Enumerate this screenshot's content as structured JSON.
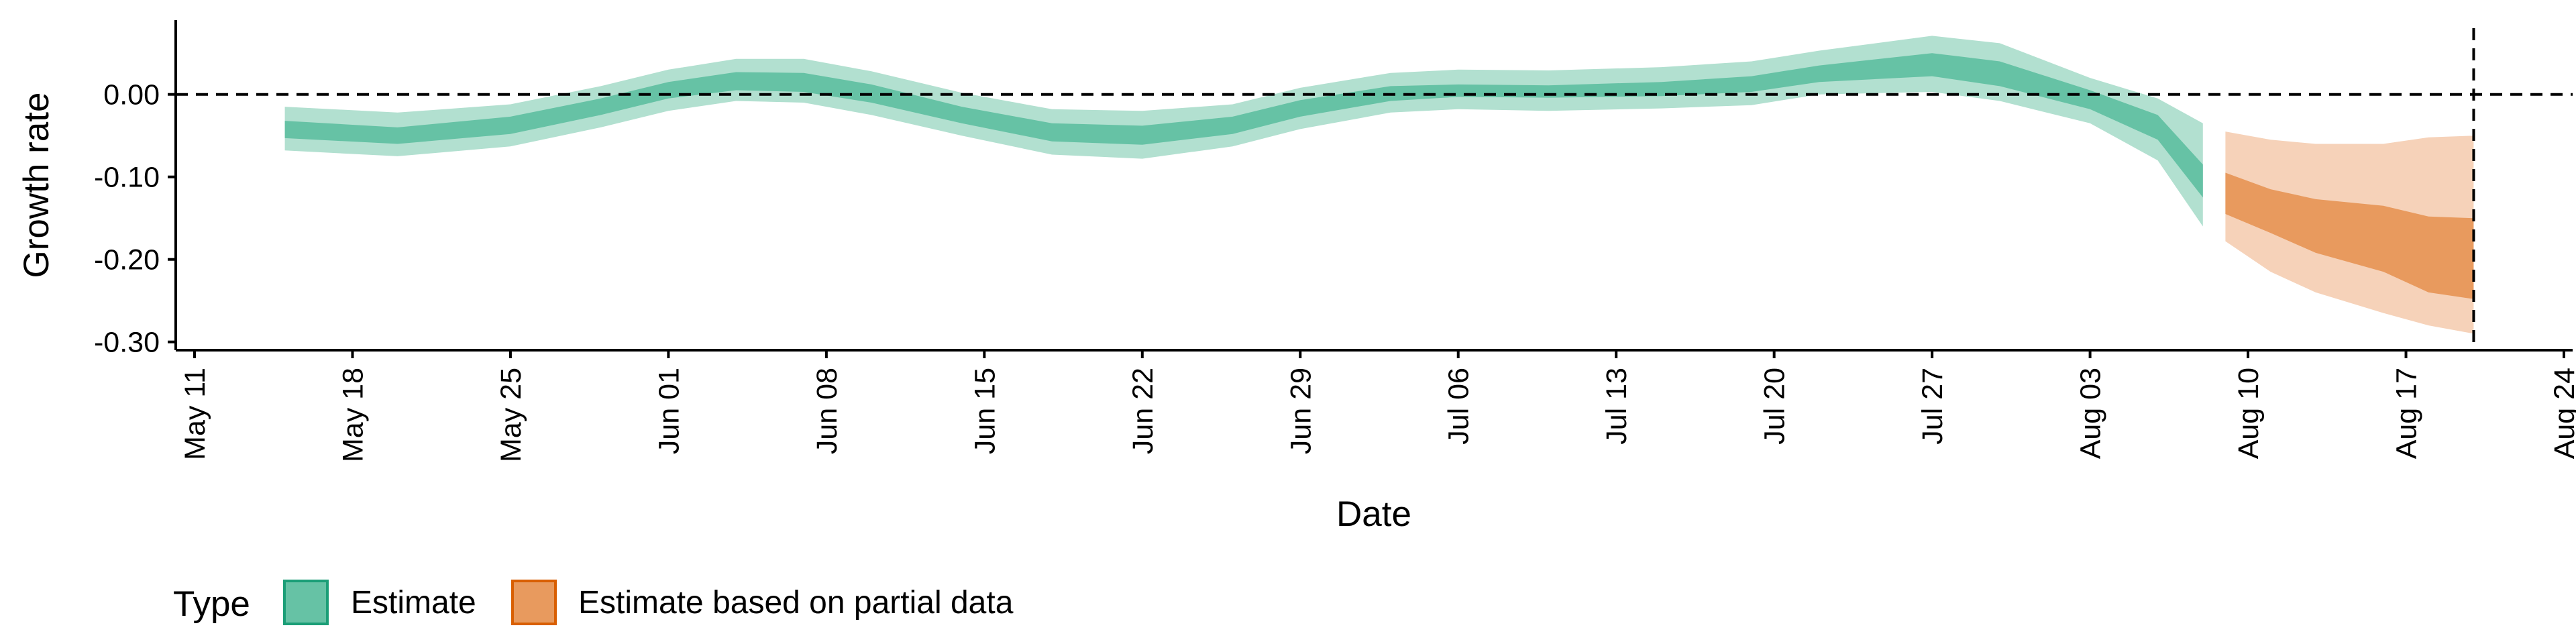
{
  "chart_data": {
    "type": "area",
    "title": "",
    "xlabel": "Date",
    "ylabel": "Growth rate",
    "x_axis": {
      "type": "date",
      "range": [
        "2020-05-11",
        "2020-08-24"
      ],
      "ticks": [
        "2020-05-11",
        "2020-05-18",
        "2020-05-25",
        "2020-06-01",
        "2020-06-08",
        "2020-06-15",
        "2020-06-22",
        "2020-06-29",
        "2020-07-06",
        "2020-07-13",
        "2020-07-20",
        "2020-07-27",
        "2020-08-03",
        "2020-08-10",
        "2020-08-17",
        "2020-08-24"
      ],
      "tick_labels": [
        "May 11",
        "May 18",
        "May 25",
        "Jun 01",
        "Jun 08",
        "Jun 15",
        "Jun 22",
        "Jun 29",
        "Jul 06",
        "Jul 13",
        "Jul 20",
        "Jul 27",
        "Aug 03",
        "Aug 10",
        "Aug 17",
        "Aug 24"
      ]
    },
    "y_axis": {
      "range": [
        -0.31,
        0.09
      ],
      "ticks": [
        0.0,
        -0.1,
        -0.2,
        -0.3
      ],
      "tick_labels": [
        "0.00",
        "-0.10",
        "-0.20",
        "-0.30"
      ]
    },
    "grid": false,
    "reference_lines": [
      {
        "orientation": "horizontal",
        "value": 0,
        "style": "dashed"
      },
      {
        "orientation": "vertical",
        "value": "2020-08-20",
        "style": "dashed"
      }
    ],
    "legend": {
      "title": "Type",
      "position": "bottom",
      "entries": [
        {
          "label": "Estimate",
          "fill": "#66c2a5",
          "border": "#1b9e77"
        },
        {
          "label": "Estimate based on partial data",
          "fill": "#e89a5e",
          "border": "#d95f02"
        }
      ]
    },
    "series": [
      {
        "name": "Estimate",
        "color_inner": "#66c2a5",
        "color_outer": "#b2e0d0",
        "points": [
          {
            "x": "2020-05-15",
            "lo90": -0.068,
            "lo50": -0.053,
            "hi50": -0.032,
            "hi90": -0.015
          },
          {
            "x": "2020-05-20",
            "lo90": -0.075,
            "lo50": -0.06,
            "hi50": -0.04,
            "hi90": -0.022
          },
          {
            "x": "2020-05-25",
            "lo90": -0.063,
            "lo50": -0.048,
            "hi50": -0.027,
            "hi90": -0.012
          },
          {
            "x": "2020-05-29",
            "lo90": -0.04,
            "lo50": -0.025,
            "hi50": -0.005,
            "hi90": 0.01
          },
          {
            "x": "2020-06-01",
            "lo90": -0.02,
            "lo50": -0.005,
            "hi50": 0.015,
            "hi90": 0.03
          },
          {
            "x": "2020-06-04",
            "lo90": -0.008,
            "lo50": 0.005,
            "hi50": 0.027,
            "hi90": 0.043
          },
          {
            "x": "2020-06-07",
            "lo90": -0.01,
            "lo50": 0.003,
            "hi50": 0.026,
            "hi90": 0.043
          },
          {
            "x": "2020-06-10",
            "lo90": -0.025,
            "lo50": -0.01,
            "hi50": 0.012,
            "hi90": 0.028
          },
          {
            "x": "2020-06-14",
            "lo90": -0.05,
            "lo50": -0.035,
            "hi50": -0.015,
            "hi90": 0.002
          },
          {
            "x": "2020-06-18",
            "lo90": -0.073,
            "lo50": -0.057,
            "hi50": -0.035,
            "hi90": -0.018
          },
          {
            "x": "2020-06-22",
            "lo90": -0.078,
            "lo50": -0.061,
            "hi50": -0.038,
            "hi90": -0.02
          },
          {
            "x": "2020-06-26",
            "lo90": -0.063,
            "lo50": -0.048,
            "hi50": -0.027,
            "hi90": -0.012
          },
          {
            "x": "2020-06-29",
            "lo90": -0.042,
            "lo50": -0.027,
            "hi50": -0.007,
            "hi90": 0.008
          },
          {
            "x": "2020-07-03",
            "lo90": -0.022,
            "lo50": -0.008,
            "hi50": 0.01,
            "hi90": 0.026
          },
          {
            "x": "2020-07-06",
            "lo90": -0.018,
            "lo50": -0.003,
            "hi50": 0.012,
            "hi90": 0.03
          },
          {
            "x": "2020-07-10",
            "lo90": -0.02,
            "lo50": -0.004,
            "hi50": 0.011,
            "hi90": 0.029
          },
          {
            "x": "2020-07-15",
            "lo90": -0.017,
            "lo50": -0.002,
            "hi50": 0.015,
            "hi90": 0.033
          },
          {
            "x": "2020-07-19",
            "lo90": -0.013,
            "lo50": 0.003,
            "hi50": 0.022,
            "hi90": 0.04
          },
          {
            "x": "2020-07-22",
            "lo90": 0.0,
            "lo50": 0.015,
            "hi50": 0.035,
            "hi90": 0.053
          },
          {
            "x": "2020-07-27",
            "lo90": 0.003,
            "lo50": 0.022,
            "hi50": 0.05,
            "hi90": 0.071
          },
          {
            "x": "2020-07-30",
            "lo90": -0.008,
            "lo50": 0.01,
            "hi50": 0.04,
            "hi90": 0.062
          },
          {
            "x": "2020-08-03",
            "lo90": -0.035,
            "lo50": -0.018,
            "hi50": 0.005,
            "hi90": 0.02
          },
          {
            "x": "2020-08-06",
            "lo90": -0.08,
            "lo50": -0.055,
            "hi50": -0.025,
            "hi90": -0.005
          },
          {
            "x": "2020-08-08",
            "lo90": -0.16,
            "lo50": -0.125,
            "hi50": -0.085,
            "hi90": -0.035
          }
        ]
      },
      {
        "name": "Estimate based on partial data",
        "color_inner": "#e89a5e",
        "color_outer": "#f6d2b9",
        "points": [
          {
            "x": "2020-08-09",
            "lo90": -0.178,
            "lo50": -0.145,
            "hi50": -0.095,
            "hi90": -0.045
          },
          {
            "x": "2020-08-11",
            "lo90": -0.215,
            "lo50": -0.168,
            "hi50": -0.115,
            "hi90": -0.055
          },
          {
            "x": "2020-08-13",
            "lo90": -0.24,
            "lo50": -0.192,
            "hi50": -0.127,
            "hi90": -0.06
          },
          {
            "x": "2020-08-16",
            "lo90": -0.265,
            "lo50": -0.215,
            "hi50": -0.135,
            "hi90": -0.06
          },
          {
            "x": "2020-08-18",
            "lo90": -0.28,
            "lo50": -0.24,
            "hi50": -0.148,
            "hi90": -0.052
          },
          {
            "x": "2020-08-20",
            "lo90": -0.29,
            "lo50": -0.248,
            "hi50": -0.15,
            "hi90": -0.05
          }
        ]
      }
    ]
  }
}
